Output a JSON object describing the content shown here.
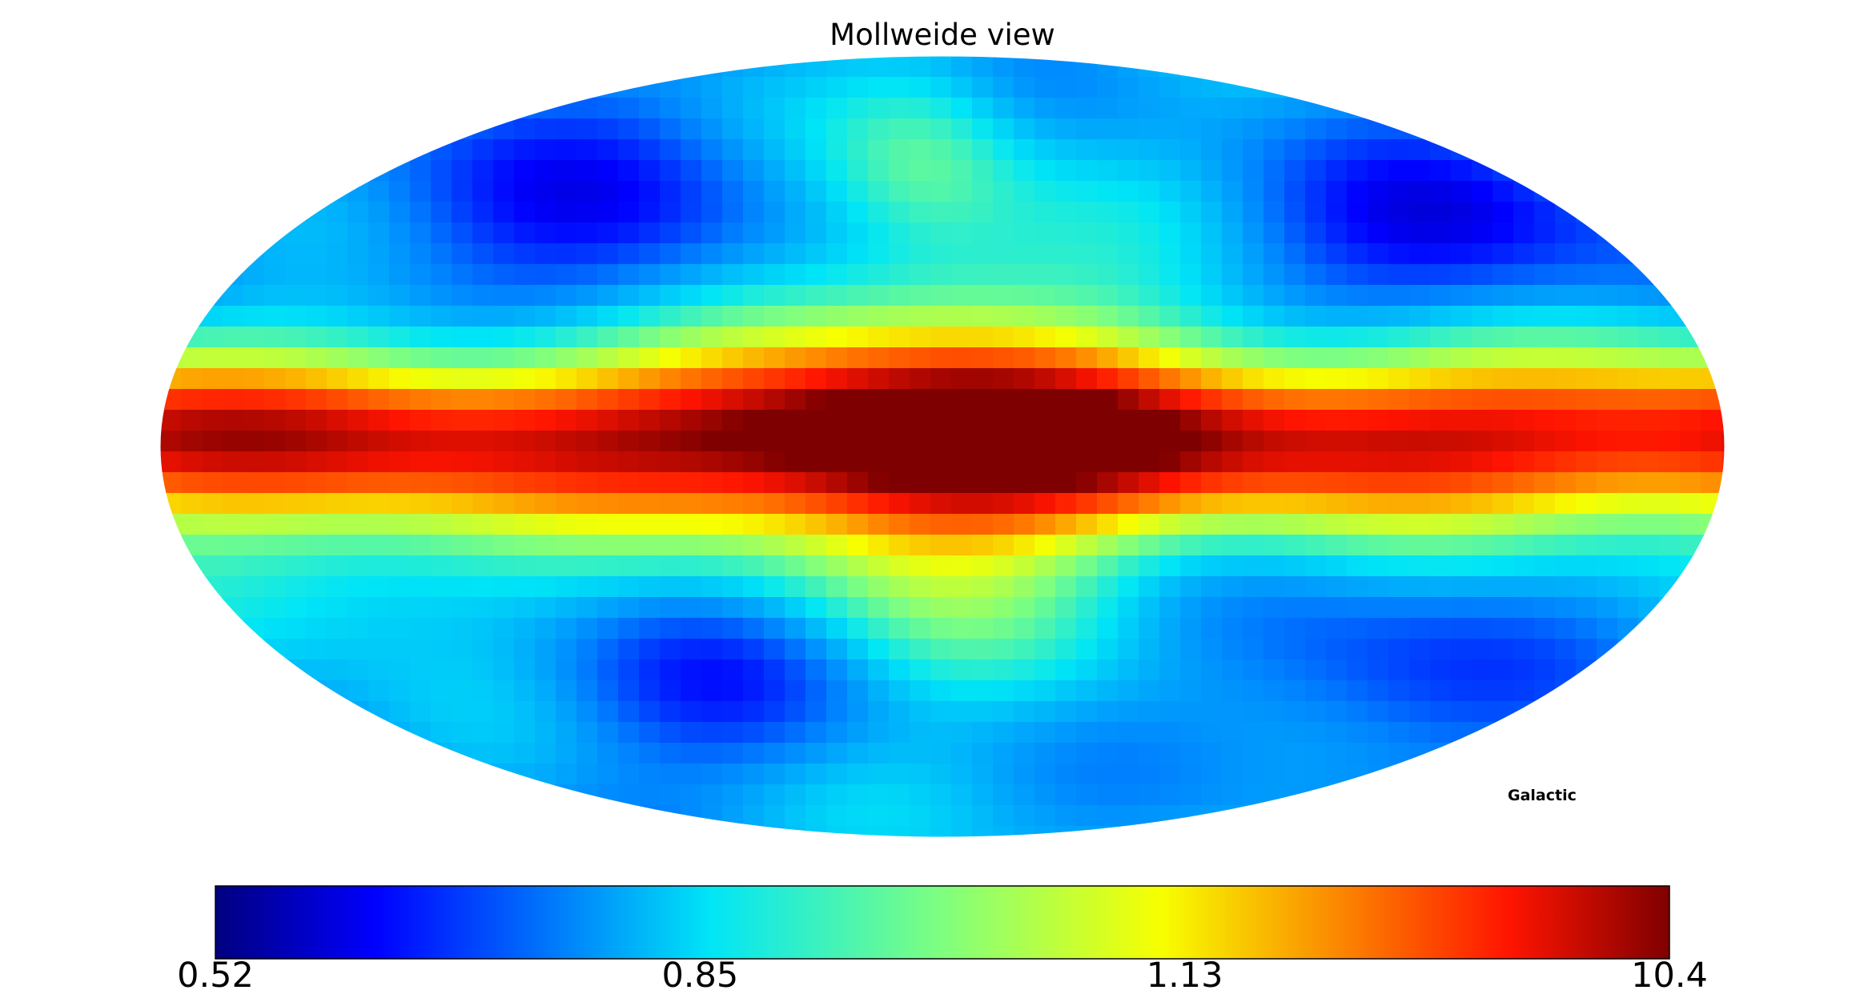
{
  "chart_data": {
    "type": "heatmap",
    "projection": "Mollweide",
    "title": "Mollweide view",
    "coordinate_system_label": "Galactic",
    "colormap": "jet",
    "colorbar": {
      "orientation": "horizontal",
      "placement": "bottom",
      "tick_labels": [
        "0.52",
        "0.85",
        "1.13",
        "10.4"
      ],
      "min": 0.52,
      "max": 10.4
    },
    "grid": false,
    "colors": {
      "jet": [
        "#00007f",
        "#0000ff",
        "#007fff",
        "#00e5f7",
        "#7fff7f",
        "#f7ff00",
        "#ff7f00",
        "#ff1400",
        "#7f0000"
      ]
    }
  }
}
